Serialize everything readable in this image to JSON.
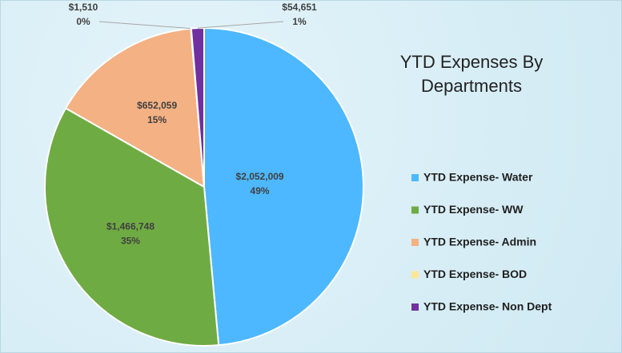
{
  "chart_data": {
    "type": "pie",
    "title": "YTD Expenses By Departments",
    "categories": [
      "YTD Expense- Water",
      "YTD Expense- WW",
      "YTD Expense- Admin",
      "YTD Expense- BOD",
      "YTD Expense- Non Dept"
    ],
    "values": [
      2052009,
      1466748,
      652059,
      1510,
      54651
    ],
    "value_labels": [
      "$2,052,009",
      "$1,466,748",
      "$652,059",
      "$1,510",
      "$54,651"
    ],
    "percent_labels": [
      "49%",
      "35%",
      "15%",
      "0%",
      "1%"
    ],
    "colors": [
      "#4db8ff",
      "#6fab43",
      "#f4b183",
      "#ffe699",
      "#7030a0"
    ],
    "legend": "right"
  }
}
